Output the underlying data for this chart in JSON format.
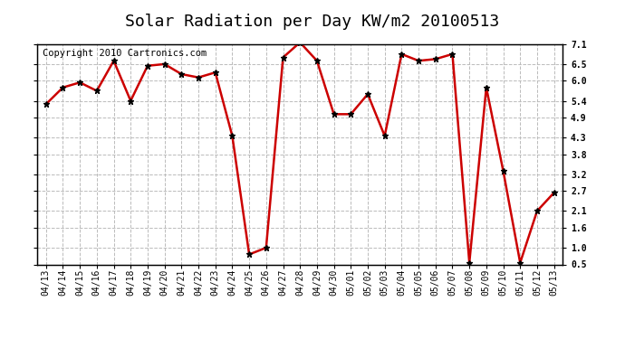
{
  "title": "Solar Radiation per Day KW/m2 20100513",
  "copyright": "Copyright 2010 Cartronics.com",
  "dates": [
    "04/13",
    "04/14",
    "04/15",
    "04/16",
    "04/17",
    "04/18",
    "04/19",
    "04/20",
    "04/21",
    "04/22",
    "04/23",
    "04/24",
    "04/25",
    "04/26",
    "04/27",
    "04/28",
    "04/29",
    "04/30",
    "05/01",
    "05/02",
    "05/03",
    "05/04",
    "05/05",
    "05/06",
    "05/07",
    "05/08",
    "05/09",
    "05/10",
    "05/11",
    "05/12",
    "05/13"
  ],
  "values": [
    5.3,
    5.8,
    5.95,
    5.7,
    6.6,
    5.4,
    6.45,
    6.5,
    6.2,
    6.1,
    6.25,
    4.35,
    0.8,
    1.0,
    6.7,
    7.15,
    6.6,
    5.0,
    5.0,
    5.6,
    4.35,
    6.8,
    6.6,
    6.65,
    6.8,
    0.55,
    5.8,
    3.3,
    0.55,
    2.1,
    2.65
  ],
  "line_color": "#cc0000",
  "marker": "*",
  "marker_color": "#000000",
  "marker_size": 5,
  "line_width": 1.8,
  "ylim": [
    0.5,
    7.1
  ],
  "yticks": [
    0.5,
    1.0,
    1.6,
    2.1,
    2.7,
    3.2,
    3.8,
    4.3,
    4.9,
    5.4,
    6.0,
    6.5,
    7.1
  ],
  "bg_color": "#ffffff",
  "plot_bg_color": "#ffffff",
  "grid_color": "#bbbbbb",
  "title_fontsize": 13,
  "copyright_fontsize": 7.5,
  "tick_fontsize": 7,
  "border_color": "#000000"
}
